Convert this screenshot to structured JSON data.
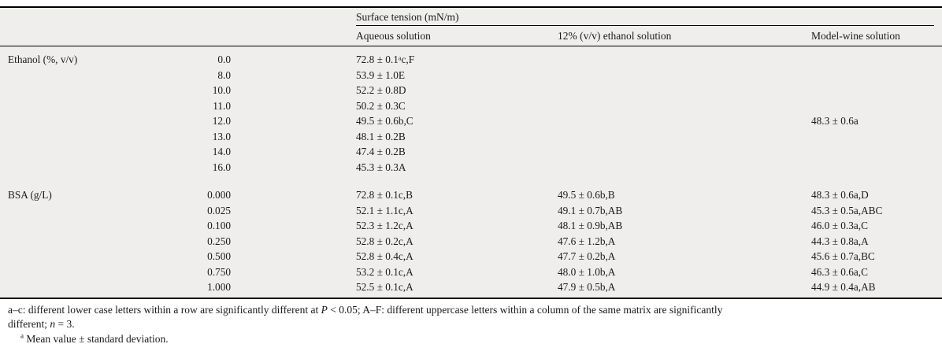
{
  "table": {
    "spanner_header": "Surface tension (mN/m)",
    "columns": {
      "aqueous": "Aqueous solution",
      "ethanol12": "12% (v/v) ethanol solution",
      "modelwine": "Model-wine solution"
    },
    "sections": [
      {
        "label": "Ethanol (%, v/v)",
        "rows": [
          {
            "conc": "0.0",
            "aqueous": "72.8 ± 0.1ᵃc,F"
          },
          {
            "conc": "8.0",
            "aqueous": "53.9 ± 1.0E"
          },
          {
            "conc": "10.0",
            "aqueous": "52.2 ± 0.8D"
          },
          {
            "conc": "11.0",
            "aqueous": "50.2 ± 0.3C"
          },
          {
            "conc": "12.0",
            "aqueous": "49.5 ± 0.6b,C",
            "modelwine": "48.3 ± 0.6a"
          },
          {
            "conc": "13.0",
            "aqueous": "48.1 ± 0.2B"
          },
          {
            "conc": "14.0",
            "aqueous": "47.4 ± 0.2B"
          },
          {
            "conc": "16.0",
            "aqueous": "45.3 ± 0.3A"
          }
        ]
      },
      {
        "label": "BSA (g/L)",
        "rows": [
          {
            "conc": "0.000",
            "aqueous": "72.8 ± 0.1c,B",
            "ethanol12": "49.5 ± 0.6b,B",
            "modelwine": "48.3 ± 0.6a,D"
          },
          {
            "conc": "0.025",
            "aqueous": "52.1 ± 1.1c,A",
            "ethanol12": "49.1 ± 0.7b,AB",
            "modelwine": "45.3 ± 0.5a,ABC"
          },
          {
            "conc": "0.100",
            "aqueous": "52.3 ± 1.2c,A",
            "ethanol12": "48.1 ± 0.9b,AB",
            "modelwine": "46.0 ± 0.3a,C"
          },
          {
            "conc": "0.250",
            "aqueous": "52.8 ± 0.2c,A",
            "ethanol12": "47.6 ± 1.2b,A",
            "modelwine": "44.3 ± 0.8a,A"
          },
          {
            "conc": "0.500",
            "aqueous": "52.8 ± 0.4c,A",
            "ethanol12": "47.7 ± 0.2b,A",
            "modelwine": "45.6 ± 0.7a,BC"
          },
          {
            "conc": "0.750",
            "aqueous": "53.2 ± 0.1c,A",
            "ethanol12": "48.0 ± 1.0b,A",
            "modelwine": "46.3 ± 0.6a,C"
          },
          {
            "conc": "1.000",
            "aqueous": "52.5 ± 0.1c,A",
            "ethanol12": "47.9 ± 0.5b,A",
            "modelwine": "44.9 ± 0.4a,AB"
          }
        ]
      }
    ]
  },
  "footnotes": {
    "general": {
      "part1": "a–c: different lower case letters within a row are significantly different at ",
      "p_symbol": "P",
      "part2": " < 0.05; A–F: different uppercase letters within a column of the same matrix are significantly",
      "part3": "different; ",
      "n_symbol": "n",
      "part4": " = 3."
    },
    "mean_note": {
      "marker": "a",
      "text": " Mean value ± standard deviation."
    }
  },
  "colors": {
    "band_background": "#efeeec",
    "rule": "#000000",
    "text": "#1a1a1a"
  }
}
